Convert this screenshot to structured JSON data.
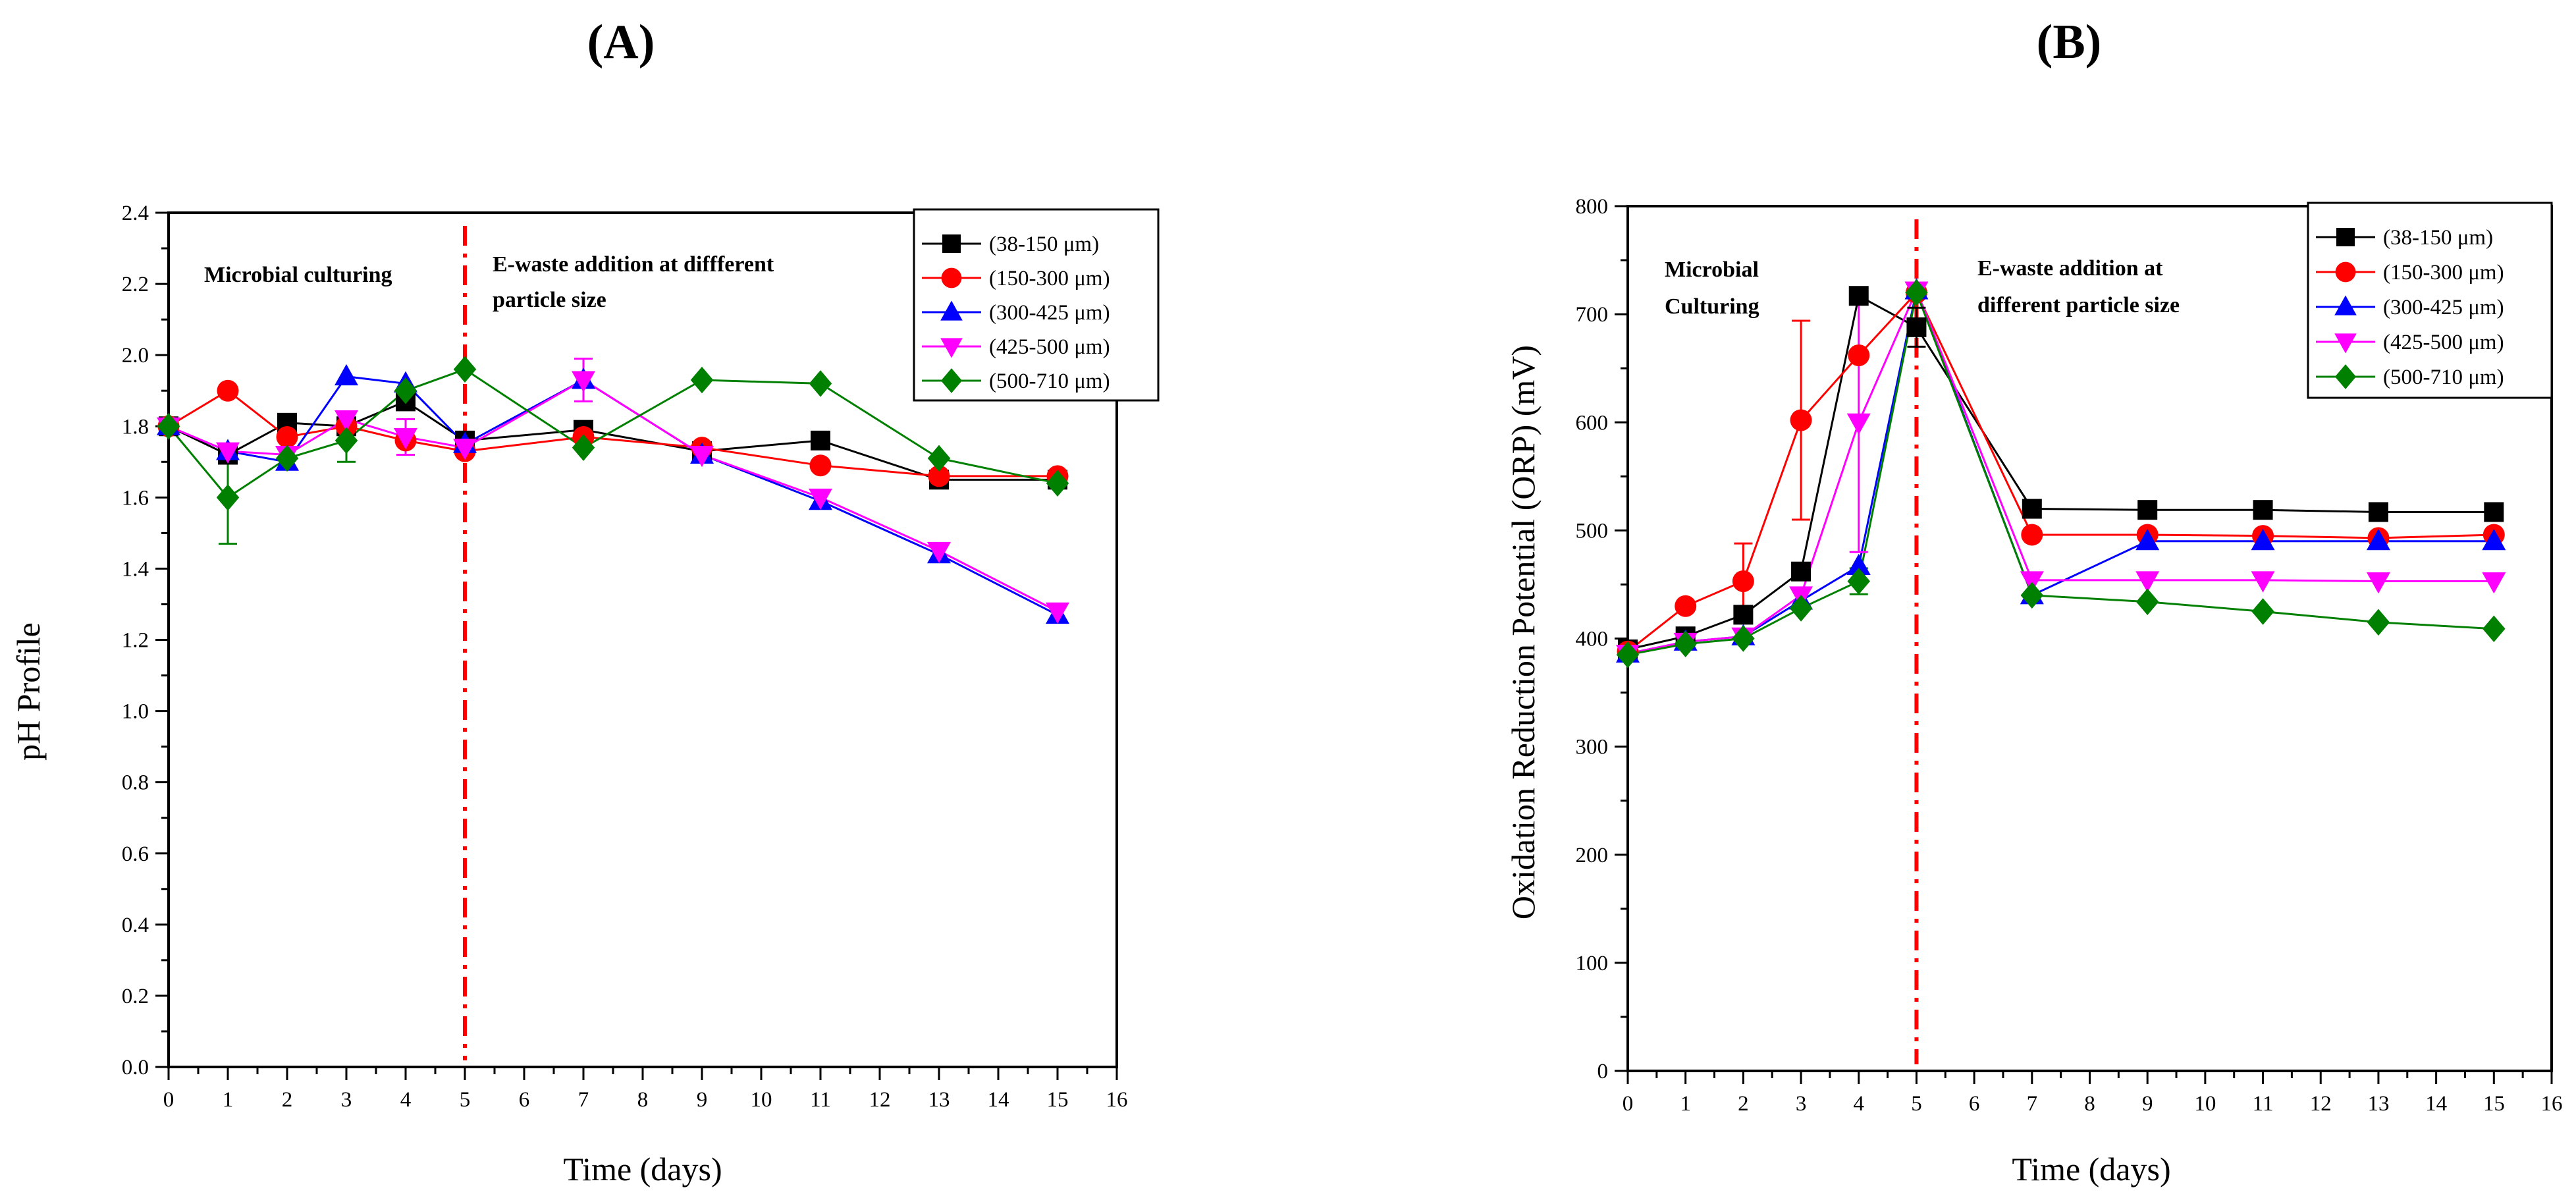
{
  "colors": {
    "38-150": "#000000",
    "150-300": "#ff0000",
    "300-425": "#0000ff",
    "425-500": "#ff00ff",
    "500-710": "#008000",
    "divider": "#ff0000"
  },
  "chart_data": [
    {
      "type": "line",
      "panel_label": "(A)",
      "xlabel": "Time (days)",
      "ylabel": "pH Profile",
      "xlim": [
        0,
        16
      ],
      "ylim": [
        0,
        2.4
      ],
      "x_ticks": [
        "0",
        "1",
        "2",
        "3",
        "4",
        "5",
        "6",
        "7",
        "8",
        "9",
        "10",
        "11",
        "12",
        "13",
        "14",
        "15",
        "16"
      ],
      "y_ticks": [
        "0.0",
        "0.2",
        "0.4",
        "0.6",
        "0.8",
        "1.0",
        "1.2",
        "1.4",
        "1.6",
        "1.8",
        "2.0",
        "2.2",
        "2.4"
      ],
      "annotations": [
        "Microbial culturing",
        "E-waste addition at diffferent",
        "particle size"
      ],
      "divider_x": 5,
      "legend_position": "top-right",
      "series": [
        {
          "name": "(38-150 μm)",
          "color_key": "38-150",
          "marker": "square",
          "x": [
            0,
            1,
            2,
            3,
            4,
            5,
            7,
            9,
            11,
            13,
            15
          ],
          "y": [
            1.8,
            1.72,
            1.81,
            1.8,
            1.87,
            1.76,
            1.79,
            1.73,
            1.76,
            1.65,
            1.65
          ]
        },
        {
          "name": "(150-300 μm)",
          "color_key": "150-300",
          "marker": "circle",
          "x": [
            0,
            1,
            2,
            3,
            4,
            5,
            7,
            9,
            11,
            13,
            15
          ],
          "y": [
            1.8,
            1.9,
            1.77,
            1.8,
            1.76,
            1.73,
            1.77,
            1.74,
            1.69,
            1.66,
            1.66
          ]
        },
        {
          "name": "(300-425 μm)",
          "color_key": "300-425",
          "marker": "triangle-up",
          "x": [
            0,
            1,
            2,
            3,
            4,
            5,
            7,
            9,
            11,
            13,
            15
          ],
          "y": [
            1.8,
            1.73,
            1.7,
            1.94,
            1.92,
            1.75,
            1.93,
            1.72,
            1.59,
            1.44,
            1.27
          ]
        },
        {
          "name": "(425-500 μm)",
          "color_key": "425-500",
          "marker": "triangle-down",
          "x": [
            0,
            1,
            2,
            3,
            4,
            5,
            7,
            9,
            11,
            13,
            15
          ],
          "y": [
            1.8,
            1.73,
            1.72,
            1.82,
            1.77,
            1.74,
            1.93,
            1.72,
            1.6,
            1.45,
            1.28
          ]
        },
        {
          "name": "(500-710 μm)",
          "color_key": "500-710",
          "marker": "diamond",
          "x": [
            0,
            1,
            2,
            3,
            4,
            5,
            7,
            9,
            11,
            13,
            15
          ],
          "y": [
            1.8,
            1.6,
            1.71,
            1.76,
            1.9,
            1.96,
            1.74,
            1.93,
            1.92,
            1.71,
            1.64
          ]
        }
      ],
      "error_bars": [
        {
          "series": 4,
          "x": 1,
          "y": 1.6,
          "err": 0.13
        },
        {
          "series": 4,
          "x": 3,
          "y": 1.76,
          "err": 0.06
        },
        {
          "series": 3,
          "x": 7,
          "y": 1.93,
          "err": 0.06
        },
        {
          "series": 3,
          "x": 4,
          "y": 1.77,
          "err": 0.05
        }
      ]
    },
    {
      "type": "line",
      "panel_label": "(B)",
      "xlabel": "Time (days)",
      "ylabel": "Oxidation Reduction Potential (ORP) (mV)",
      "xlim": [
        0,
        16
      ],
      "ylim": [
        0,
        800
      ],
      "x_ticks": [
        "0",
        "1",
        "2",
        "3",
        "4",
        "5",
        "6",
        "7",
        "8",
        "9",
        "10",
        "11",
        "12",
        "13",
        "14",
        "15",
        "16"
      ],
      "y_ticks": [
        "0",
        "100",
        "200",
        "300",
        "400",
        "500",
        "600",
        "700",
        "800"
      ],
      "annotations": [
        "Microbial",
        "Culturing",
        "E-waste addition at",
        "different particle size"
      ],
      "divider_x": 5,
      "legend_position": "top-right",
      "series": [
        {
          "name": "(38-150 μm)",
          "color_key": "38-150",
          "marker": "square",
          "x": [
            0,
            1,
            2,
            3,
            4,
            5,
            7,
            9,
            11,
            13,
            15
          ],
          "y": [
            390,
            402,
            422,
            462,
            717,
            688,
            520,
            519,
            519,
            517,
            517
          ]
        },
        {
          "name": "(150-300 μm)",
          "color_key": "150-300",
          "marker": "circle",
          "x": [
            0,
            1,
            2,
            3,
            4,
            5,
            7,
            9,
            11,
            13,
            15
          ],
          "y": [
            388,
            430,
            453,
            602,
            662,
            720,
            496,
            496,
            495,
            493,
            496
          ]
        },
        {
          "name": "(300-425 μm)",
          "color_key": "300-425",
          "marker": "triangle-up",
          "x": [
            0,
            1,
            2,
            3,
            4,
            5,
            7,
            9,
            11,
            13,
            15
          ],
          "y": [
            386,
            397,
            402,
            435,
            467,
            722,
            440,
            490,
            490,
            490,
            490
          ]
        },
        {
          "name": "(425-500 μm)",
          "color_key": "425-500",
          "marker": "triangle-down",
          "x": [
            0,
            1,
            2,
            3,
            4,
            5,
            7,
            9,
            11,
            13,
            15
          ],
          "y": [
            386,
            397,
            402,
            440,
            600,
            722,
            454,
            454,
            454,
            453,
            453
          ]
        },
        {
          "name": "(500-710 μm)",
          "color_key": "500-710",
          "marker": "diamond",
          "x": [
            0,
            1,
            2,
            3,
            4,
            5,
            7,
            9,
            11,
            13,
            15
          ],
          "y": [
            385,
            395,
            400,
            428,
            453,
            720,
            440,
            434,
            425,
            415,
            409
          ]
        }
      ],
      "error_bars": [
        {
          "series": 1,
          "x": 3,
          "y": 602,
          "err": 92
        },
        {
          "series": 1,
          "x": 2,
          "y": 453,
          "err": 35
        },
        {
          "series": 3,
          "x": 4,
          "y": 600,
          "err": 120
        },
        {
          "series": 4,
          "x": 4,
          "y": 453,
          "err": 12
        },
        {
          "series": 0,
          "x": 5,
          "y": 688,
          "err": 18
        }
      ]
    }
  ]
}
